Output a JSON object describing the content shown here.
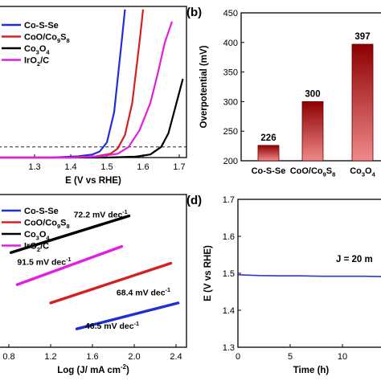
{
  "colors": {
    "co_s_se": "#1f2fd6",
    "coo_co9s8": "#d62020",
    "co3o4": "#000000",
    "iro2c": "#e11ee1",
    "bar_light": "#f08a8a",
    "bar_dark": "#8c0000",
    "stability": "#2a3ac8"
  },
  "chart_data": [
    {
      "panel": "a",
      "type": "line",
      "panel_label": "",
      "xlabel": "E (V vs RHE)",
      "ylabel": "",
      "xlim": [
        1.2,
        1.72
      ],
      "ylim": [
        0,
        1
      ],
      "x_ticks": [
        1.3,
        1.4,
        1.5,
        1.6,
        1.7
      ],
      "reference_line": {
        "y": 0.07,
        "style": "dashed"
      },
      "legend": {
        "position": "top-left",
        "entries": [
          {
            "key": "co_s_se",
            "parts": [
              [
                "Co-S-Se",
                ""
              ]
            ]
          },
          {
            "key": "coo_co9s8",
            "parts": [
              [
                "CoO/Co",
                ""
              ],
              [
                "9",
                "sub"
              ],
              [
                "S",
                ""
              ],
              [
                "8",
                "sub"
              ]
            ]
          },
          {
            "key": "co3o4",
            "parts": [
              [
                "Co",
                ""
              ],
              [
                "3",
                "sub"
              ],
              [
                "O",
                ""
              ],
              [
                "4",
                "sub"
              ]
            ]
          },
          {
            "key": "iro2c",
            "parts": [
              [
                "IrO",
                ""
              ],
              [
                "2",
                "sub"
              ],
              [
                "/C",
                ""
              ]
            ]
          }
        ]
      },
      "series": [
        {
          "key": "co_s_se",
          "x": [
            1.2,
            1.35,
            1.42,
            1.46,
            1.48,
            1.5,
            1.52,
            1.54,
            1.55
          ],
          "y": [
            0.0,
            0.0,
            0.008,
            0.02,
            0.04,
            0.1,
            0.3,
            0.75,
            0.98
          ]
        },
        {
          "key": "coo_co9s8",
          "x": [
            1.2,
            1.4,
            1.47,
            1.51,
            1.53,
            1.55,
            1.57,
            1.59,
            1.6
          ],
          "y": [
            0.0,
            0.0,
            0.008,
            0.025,
            0.06,
            0.15,
            0.36,
            0.76,
            0.98
          ]
        },
        {
          "key": "co3o4",
          "x": [
            1.2,
            1.5,
            1.58,
            1.62,
            1.65,
            1.67,
            1.69,
            1.71
          ],
          "y": [
            0.0,
            0.0,
            0.006,
            0.02,
            0.07,
            0.16,
            0.34,
            0.52
          ]
        },
        {
          "key": "iro2c",
          "x": [
            1.2,
            1.4,
            1.48,
            1.53,
            1.56,
            1.59,
            1.62,
            1.64,
            1.66,
            1.68
          ],
          "y": [
            0.0,
            0.0,
            0.008,
            0.025,
            0.07,
            0.18,
            0.36,
            0.55,
            0.76,
            0.9
          ]
        }
      ]
    },
    {
      "panel": "b",
      "type": "bar",
      "panel_label": "(b)",
      "xlabel": "",
      "ylabel": "Overpotential (mV)",
      "ylim": [
        200,
        450
      ],
      "y_ticks": [
        200,
        250,
        300,
        350,
        400,
        450
      ],
      "categories": [
        {
          "key": "co_s_se",
          "parts": [
            [
              "Co-S-Se",
              ""
            ]
          ]
        },
        {
          "key": "coo_co9s8",
          "parts": [
            [
              "CoO/Co",
              ""
            ],
            [
              "9",
              "sub"
            ],
            [
              "S",
              ""
            ],
            [
              "8",
              "sub"
            ]
          ]
        },
        {
          "key": "co3o4",
          "parts": [
            [
              "Co",
              ""
            ],
            [
              "3",
              "sub"
            ],
            [
              "O",
              ""
            ],
            [
              "4",
              "sub"
            ]
          ]
        }
      ],
      "values": [
        226,
        300,
        397
      ],
      "value_labels": [
        "226",
        "300",
        "397"
      ]
    },
    {
      "panel": "c",
      "type": "line",
      "panel_label": "",
      "xlabel_parts": [
        [
          "Log (J/ mA cm",
          ""
        ],
        [
          "-2",
          "sup"
        ],
        [
          ")",
          ""
        ]
      ],
      "ylabel": "",
      "xlim": [
        0.7,
        2.5
      ],
      "ylim": [
        0,
        1
      ],
      "x_ticks": [
        0.8,
        1.2,
        1.6,
        2.0,
        2.4
      ],
      "x_tick_labels": [
        "0.8",
        "1.2",
        "1.6",
        "2.0",
        "2.4"
      ],
      "legend": {
        "position": "top-left",
        "entries": [
          {
            "key": "co_s_se",
            "parts": [
              [
                "Co-S-Se",
                ""
              ]
            ]
          },
          {
            "key": "coo_co9s8",
            "parts": [
              [
                "CoO/Co",
                ""
              ],
              [
                "9",
                "sub"
              ],
              [
                "S",
                ""
              ],
              [
                "8",
                "sub"
              ]
            ]
          },
          {
            "key": "co3o4",
            "parts": [
              [
                "Co",
                ""
              ],
              [
                "3",
                "sub"
              ],
              [
                "O",
                ""
              ],
              [
                "4",
                "sub"
              ]
            ]
          },
          {
            "key": "iro2c",
            "parts": [
              [
                "IrO",
                ""
              ],
              [
                "2",
                "sub"
              ],
              [
                "/C",
                ""
              ]
            ]
          }
        ]
      },
      "series": [
        {
          "key": "co3o4",
          "x": [
            0.82,
            1.95
          ],
          "y": [
            0.62,
            0.86
          ]
        },
        {
          "key": "iro2c",
          "x": [
            0.88,
            1.88
          ],
          "y": [
            0.41,
            0.66
          ]
        },
        {
          "key": "coo_co9s8",
          "x": [
            1.2,
            2.35
          ],
          "y": [
            0.29,
            0.55
          ]
        },
        {
          "key": "co_s_se",
          "x": [
            1.45,
            2.42
          ],
          "y": [
            0.12,
            0.29
          ]
        }
      ],
      "annotations": [
        {
          "key": "co3o4",
          "parts": [
            [
              "72.2 mV dec",
              ""
            ],
            [
              "-1",
              "sup"
            ]
          ],
          "x": 1.42,
          "y": 0.85
        },
        {
          "key": "iro2c",
          "parts": [
            [
              "91.5 mV dec",
              ""
            ],
            [
              "-1",
              "sup"
            ]
          ],
          "x": 0.88,
          "y": 0.54
        },
        {
          "key": "coo_co9s8",
          "parts": [
            [
              "68.4 mV dec",
              ""
            ],
            [
              "-1",
              "sup"
            ]
          ],
          "x": 1.83,
          "y": 0.34
        },
        {
          "key": "co_s_se",
          "parts": [
            [
              "46.5 mV dec",
              ""
            ],
            [
              "-1",
              "sup"
            ]
          ],
          "x": 1.53,
          "y": 0.12
        }
      ]
    },
    {
      "panel": "d",
      "type": "line",
      "panel_label": "(d)",
      "xlabel": "Time (h)",
      "ylabel": "E (V vs RHE)",
      "xlim": [
        0,
        14
      ],
      "ylim": [
        1.3,
        1.7
      ],
      "x_ticks": [
        0,
        5,
        10
      ],
      "y_ticks": [
        1.3,
        1.4,
        1.5,
        1.6,
        1.7
      ],
      "annotation": "J = 20 m",
      "series": [
        {
          "key": "stability",
          "x": [
            0,
            2,
            4,
            6,
            8,
            10,
            12,
            14
          ],
          "y": [
            1.496,
            1.494,
            1.493,
            1.493,
            1.492,
            1.492,
            1.492,
            1.491
          ]
        }
      ]
    }
  ]
}
